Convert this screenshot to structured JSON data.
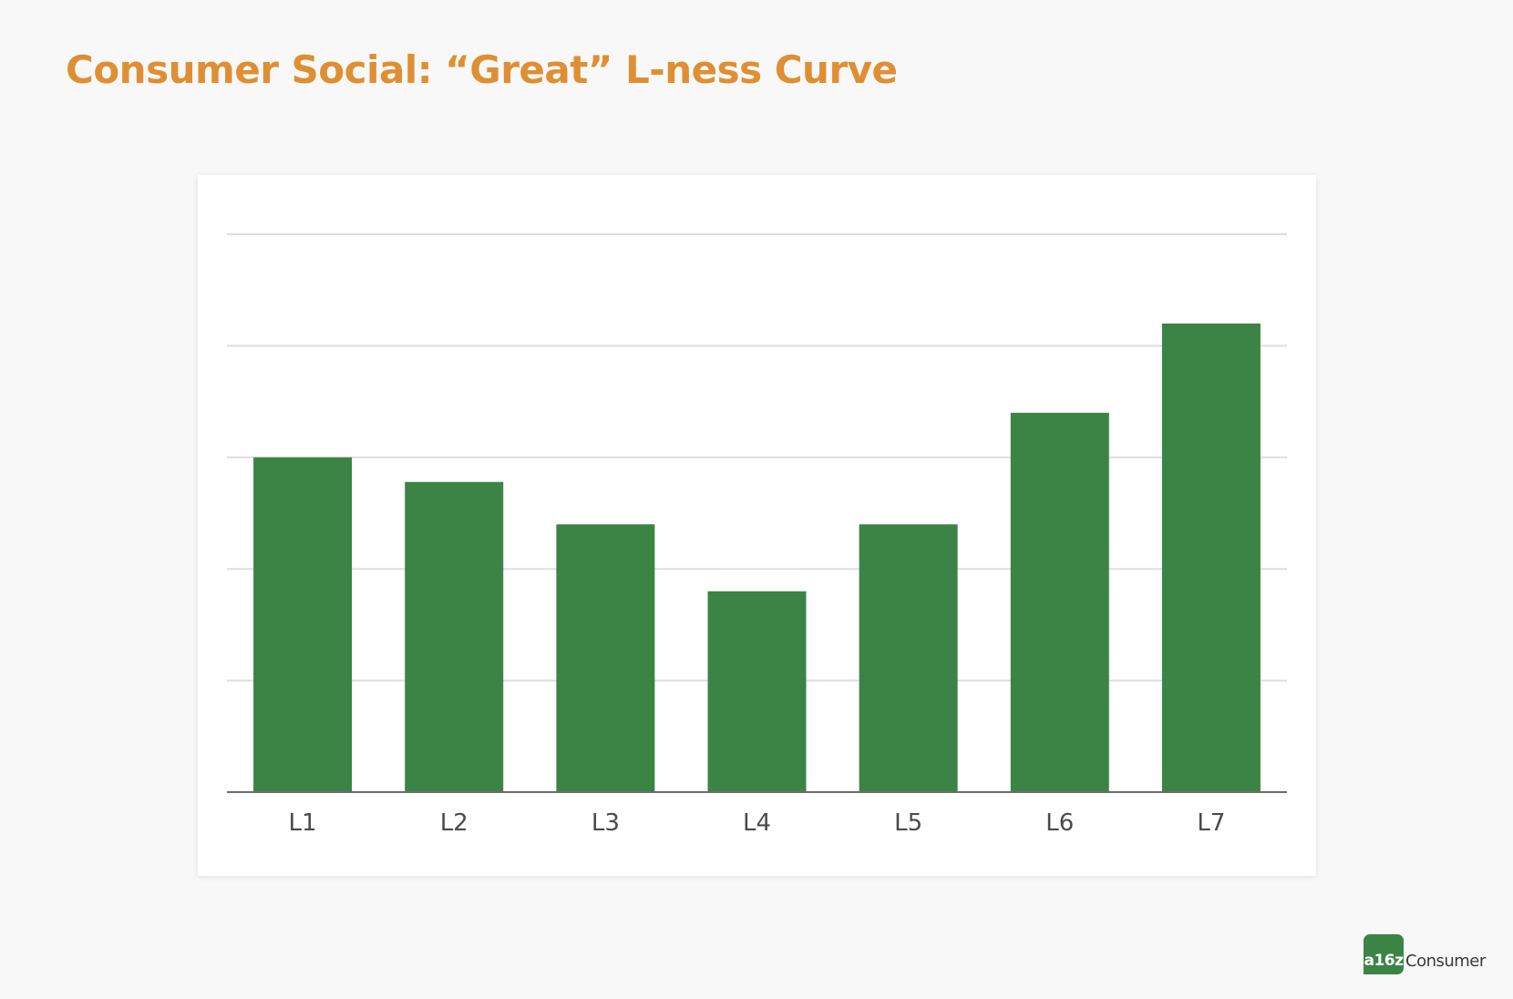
{
  "slide": {
    "title": "Consumer Social: “Great” L-ness Curve"
  },
  "colors": {
    "title": "#df8f33",
    "bar": "#3b8446",
    "gridline": "#dcdee3",
    "axis": "#6b6b6b"
  },
  "chart_data": {
    "type": "bar",
    "title": "",
    "xlabel": "",
    "ylabel": "",
    "categories": [
      "L1",
      "L2",
      "L3",
      "L4",
      "L5",
      "L6",
      "L7"
    ],
    "values": [
      3.0,
      2.78,
      2.4,
      1.8,
      2.4,
      3.4,
      4.2
    ],
    "ylim": [
      0,
      5
    ],
    "y_tick_labels_shown": false,
    "grid": true
  },
  "brand": {
    "mark": "a16z",
    "name": "Consumer"
  }
}
